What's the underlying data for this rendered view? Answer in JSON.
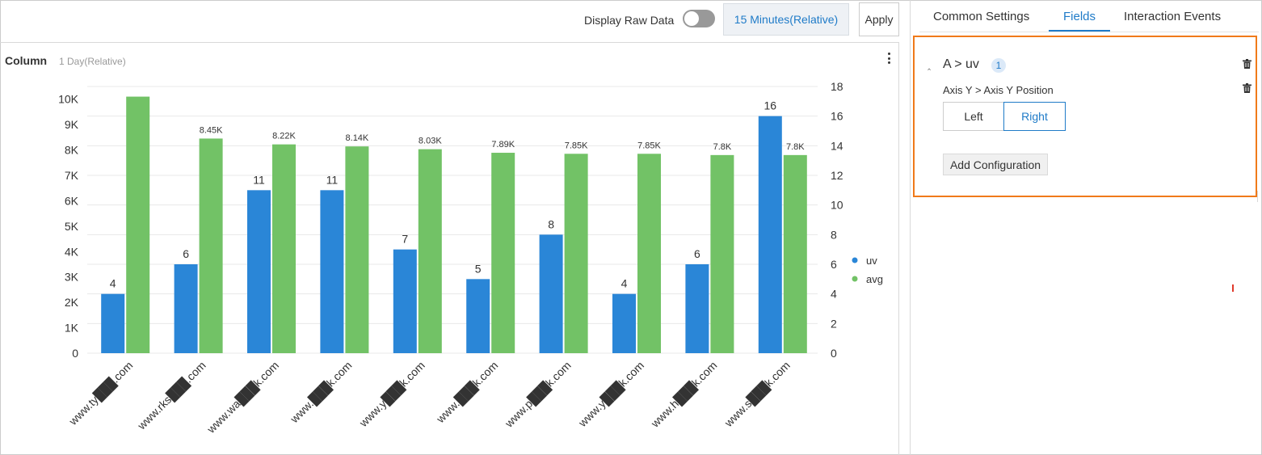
{
  "toolbar": {
    "raw_data_label": "Display Raw Data",
    "time_range": "15 Minutes(Relative)",
    "apply_label": "Apply"
  },
  "chart_panel": {
    "title": "Column",
    "time_label": "1 Day(Relative)"
  },
  "chart_data": {
    "type": "bar",
    "categories": [
      "www.ty███.com",
      "www.rks███.com",
      "www.wa███k.com",
      "www.███k.com",
      "www.y███k.com",
      "www.███k.com",
      "www.p███k.com",
      "www.y███k.com",
      "www.h███k.com",
      "www.s███k.com"
    ],
    "series": [
      {
        "name": "uv",
        "axis": "right",
        "color": "#2a86d7",
        "values": [
          4,
          6,
          11,
          11,
          7,
          5,
          8,
          4,
          6,
          16
        ],
        "labels": [
          "4",
          "6",
          "11",
          "11",
          "7",
          "5",
          "8",
          "4",
          "6",
          "16"
        ]
      },
      {
        "name": "avg",
        "axis": "left",
        "color": "#72c266",
        "values": [
          10100,
          8450,
          8220,
          8140,
          8030,
          7890,
          7850,
          7850,
          7800,
          7800
        ],
        "labels": [
          "",
          "8.45K",
          "8.22K",
          "8.14K",
          "8.03K",
          "7.89K",
          "7.85K",
          "7.85K",
          "7.8K",
          "7.8K"
        ]
      }
    ],
    "left_axis": {
      "ylim": [
        0,
        10500
      ],
      "ticks": [
        0,
        1000,
        2000,
        3000,
        4000,
        5000,
        6000,
        7000,
        8000,
        9000,
        10000
      ],
      "tick_labels": [
        "0",
        "1K",
        "2K",
        "3K",
        "4K",
        "5K",
        "6K",
        "7K",
        "8K",
        "9K",
        "10K"
      ]
    },
    "right_axis": {
      "ylim": [
        0,
        18
      ],
      "ticks": [
        0,
        2,
        4,
        6,
        8,
        10,
        12,
        14,
        16,
        18
      ],
      "tick_labels": [
        "0",
        "2",
        "4",
        "6",
        "8",
        "10",
        "12",
        "14",
        "16",
        "18"
      ]
    },
    "grid": true,
    "legend": "right"
  },
  "tabs": {
    "common_settings": "Common Settings",
    "fields": "Fields",
    "interaction_events": "Interaction Events"
  },
  "field_config": {
    "field_name": "A > uv",
    "count": "1",
    "axis_label": "Axis Y > Axis Y Position",
    "position_left": "Left",
    "position_right": "Right",
    "selected_position": "Right",
    "add_configuration": "Add Configuration"
  },
  "colors": {
    "accent": "#1f7bc8",
    "highlight_border": "#f07a1a"
  }
}
